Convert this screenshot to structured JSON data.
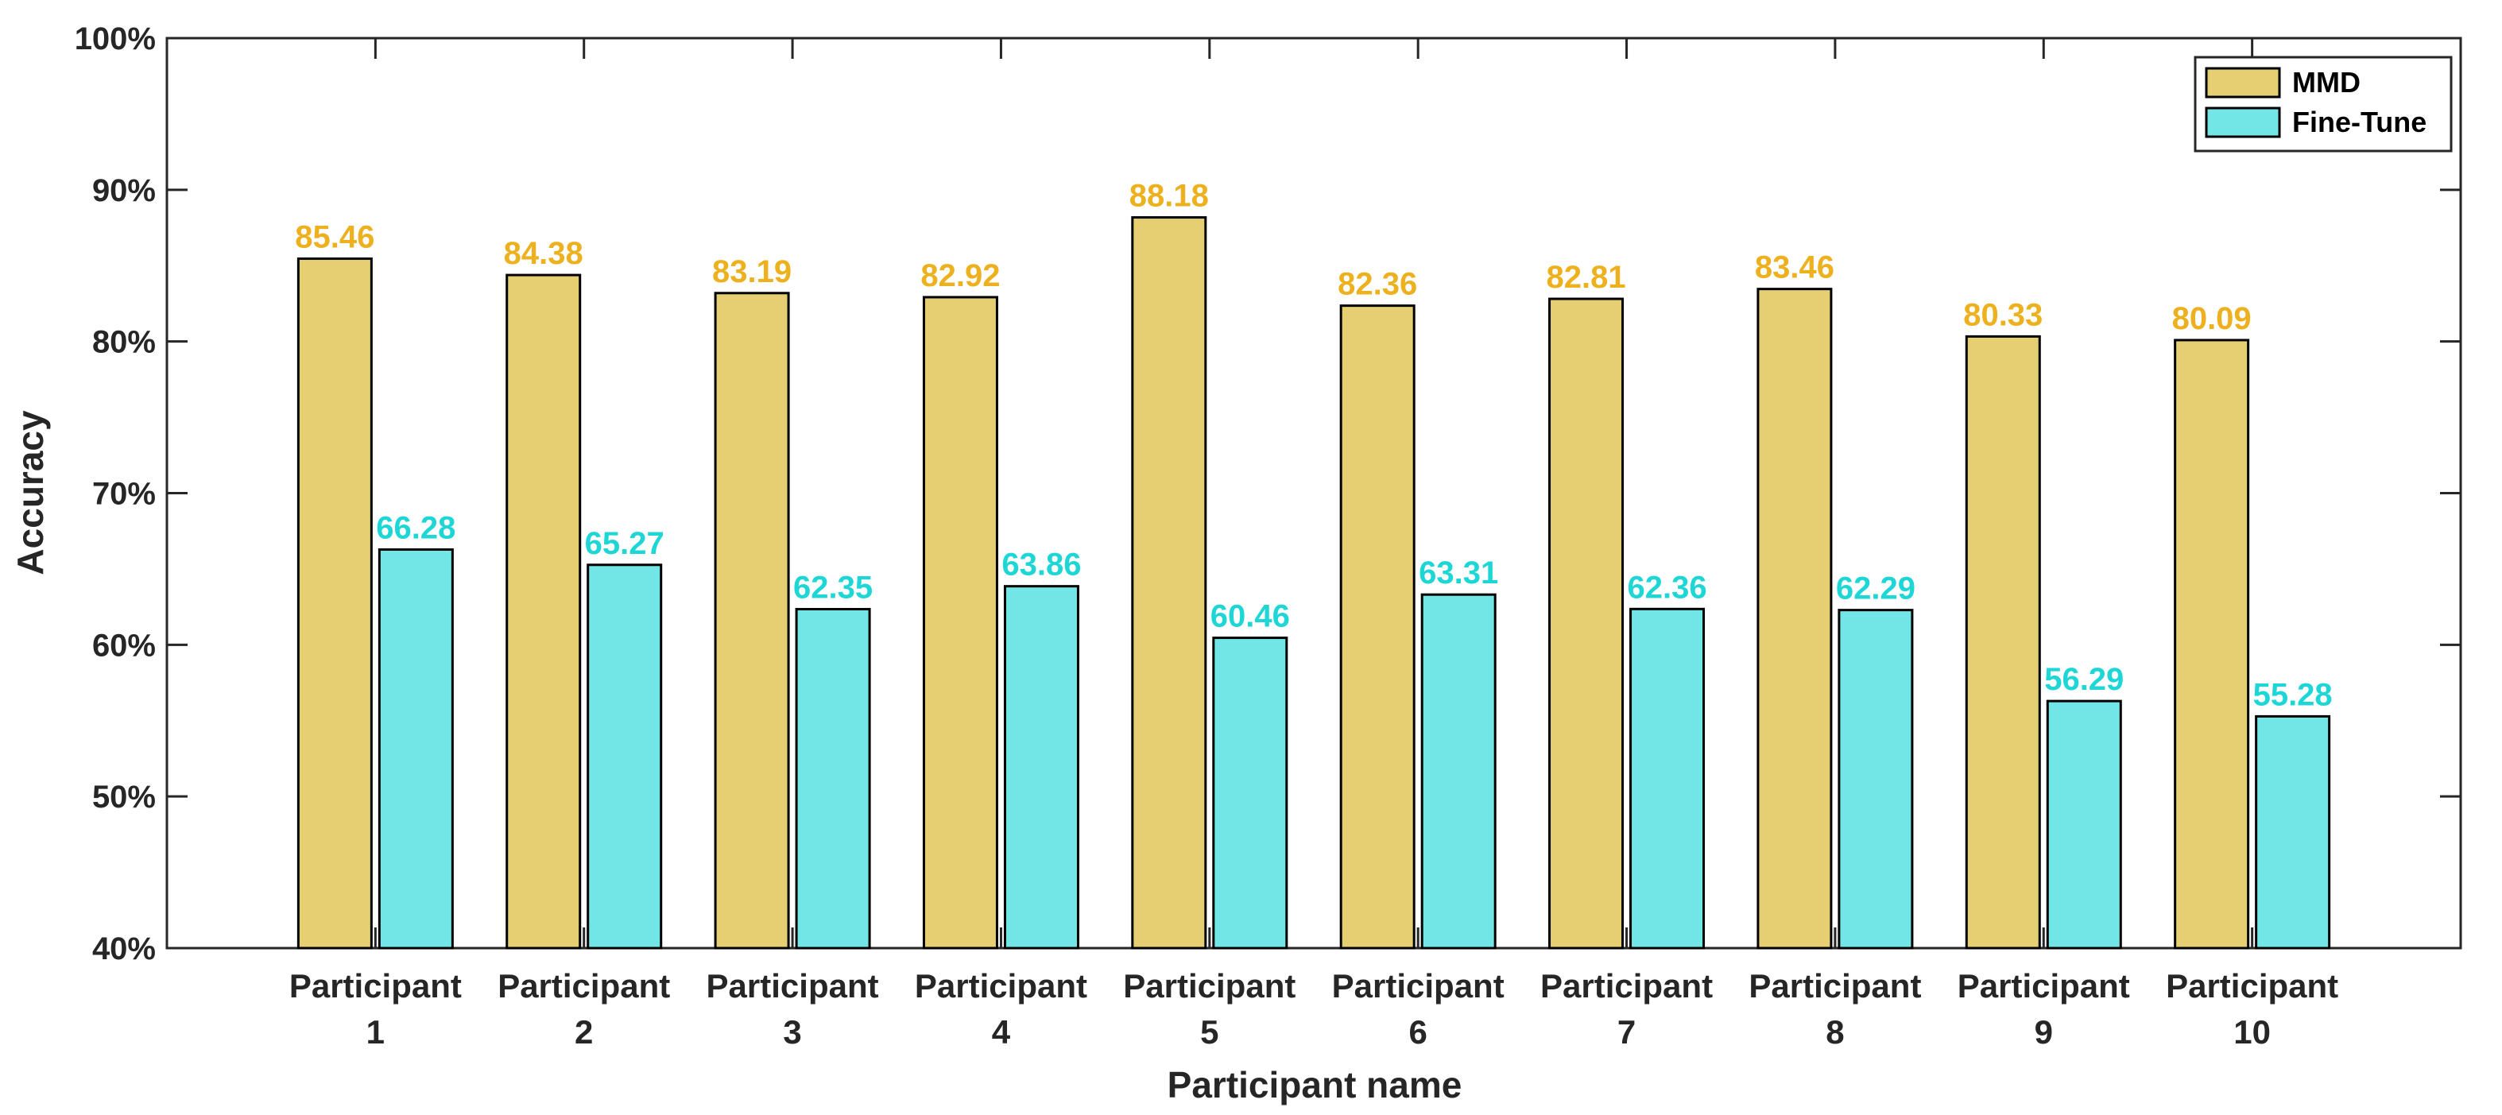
{
  "chart_data": {
    "type": "bar",
    "title": "",
    "xlabel": "Participant name",
    "ylabel": "Accuracy",
    "ylim": [
      40,
      100
    ],
    "y_ticks": [
      40,
      50,
      60,
      70,
      80,
      90,
      100
    ],
    "y_tick_labels": [
      "40%",
      "50%",
      "60%",
      "70%",
      "80%",
      "90%",
      "100%"
    ],
    "grid": false,
    "legend_position": "top-right",
    "categories": [
      [
        "Participant",
        "1"
      ],
      [
        "Participant",
        "2"
      ],
      [
        "Participant",
        "3"
      ],
      [
        "Participant",
        "4"
      ],
      [
        "Participant",
        "5"
      ],
      [
        "Participant",
        "6"
      ],
      [
        "Participant",
        "7"
      ],
      [
        "Participant",
        "8"
      ],
      [
        "Participant",
        "9"
      ],
      [
        "Participant",
        "10"
      ]
    ],
    "series": [
      {
        "name": "MMD",
        "color": "#E6CF73",
        "label_color": "#EDB120",
        "values": [
          85.46,
          84.38,
          83.19,
          82.92,
          88.18,
          82.36,
          82.81,
          83.46,
          80.33,
          80.09
        ],
        "labels": [
          "85.46",
          "84.38",
          "83.19",
          "82.92",
          "88.18",
          "82.36",
          "82.81",
          "83.46",
          "80.33",
          "80.09"
        ]
      },
      {
        "name": "Fine-Tune",
        "color": "#72E6E6",
        "label_color": "#1FD6D6",
        "values": [
          66.28,
          65.27,
          62.35,
          63.86,
          60.46,
          63.31,
          62.36,
          62.29,
          56.29,
          55.28
        ],
        "labels": [
          "66.28",
          "65.27",
          "62.35",
          "63.86",
          "60.46",
          "63.31",
          "62.36",
          "62.29",
          "56.29",
          "55.28"
        ]
      }
    ]
  }
}
